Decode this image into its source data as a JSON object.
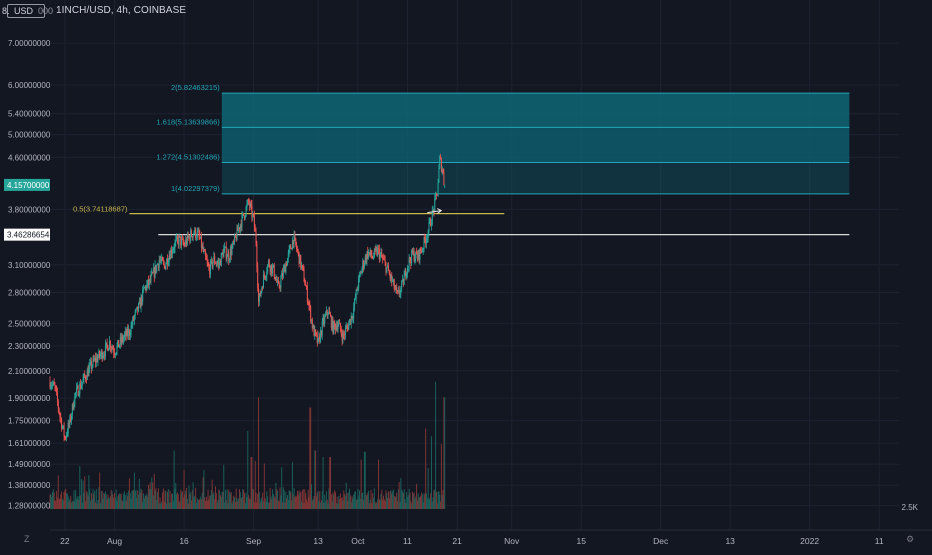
{
  "header": {
    "symbol_line": "1INCH/USD, 4h, COINBASE",
    "currency_left": "8.",
    "currency_mid": "USD",
    "currency_right": "000"
  },
  "colors": {
    "background": "#131722",
    "grid": "#1e2230",
    "up": "#26a69a",
    "down": "#ef5350",
    "volume_up": "#1a5e59",
    "volume_down": "#7e3434",
    "fib_zone": "#0e6675",
    "fib_line": "#22a6b8",
    "yellow_line": "#c9b64a",
    "white_line": "#d9d9d9",
    "axis_text": "#b2b5be",
    "price_badge": "#26a69a"
  },
  "chart_data": {
    "type": "candlestick",
    "symbol": "1INCH/USD",
    "interval": "4h",
    "exchange": "COINBASE",
    "y_scale": "log",
    "ylim": [
      1.25,
      8.2
    ],
    "y_ticks": [
      "7.00000000",
      "6.00000000",
      "5.40000000",
      "5.00000000",
      "4.60000000",
      "3.80000000",
      "3.10000000",
      "2.80000000",
      "2.50000000",
      "2.30000000",
      "2.10000000",
      "1.90000000",
      "1.75000000",
      "1.61000000",
      "1.49000000",
      "1.38000000",
      "1.28000000"
    ],
    "y_tick_values": [
      7.0,
      6.0,
      5.4,
      5.0,
      4.6,
      3.8,
      3.1,
      2.8,
      2.5,
      2.3,
      2.1,
      1.9,
      1.75,
      1.61,
      1.49,
      1.38,
      1.28
    ],
    "x_ticks": [
      "22",
      "Aug",
      "16",
      "Sep",
      "13",
      "Oct",
      "11",
      "21",
      "Nov",
      "15",
      "Dec",
      "13",
      "2022",
      "11"
    ],
    "x_tick_values": [
      -7,
      3,
      17,
      31,
      44,
      52,
      62,
      72,
      83,
      97,
      113,
      127,
      143,
      157
    ],
    "x_unit": "days from 2021-08-01",
    "xlim": [
      -10,
      161
    ],
    "price_axis_labels": [
      {
        "value": 4.157,
        "text": "4.15700000",
        "style": "badge"
      },
      {
        "value": 3.46286654,
        "text": "3.46286654",
        "style": "white"
      }
    ],
    "fib_extension": {
      "levels": [
        {
          "ratio": "1",
          "price": 4.02297379,
          "label": "1(4.02297379)"
        },
        {
          "ratio": "1.272",
          "price": 4.51302486,
          "label": "1.272(4.51302486)"
        },
        {
          "ratio": "1.618",
          "price": 5.13639866,
          "label": "1.618(5.13639866)"
        },
        {
          "ratio": "2",
          "price": 5.82463215,
          "label": "2(5.82463215)"
        }
      ],
      "x_start": 24.6,
      "x_end": 151
    },
    "horizontal_lines": [
      {
        "price": 3.74118687,
        "label": "0.5(3.74118687)",
        "color": "yellow",
        "x_start": 6.0,
        "x_end": 81.5
      },
      {
        "price": 3.46286654,
        "label": "",
        "color": "white",
        "x_start": 11.8,
        "x_end": 151
      }
    ],
    "volume_axis_label": "2.5K",
    "close_path": [
      [
        -10,
        2.02
      ],
      [
        -9,
        1.97
      ],
      [
        -8,
        1.78
      ],
      [
        -7,
        1.64
      ],
      [
        -6,
        1.74
      ],
      [
        -5,
        1.92
      ],
      [
        -4,
        1.98
      ],
      [
        -3,
        2.05
      ],
      [
        -2,
        2.12
      ],
      [
        -1,
        2.18
      ],
      [
        0,
        2.22
      ],
      [
        1,
        2.26
      ],
      [
        2,
        2.33
      ],
      [
        3,
        2.26
      ],
      [
        4,
        2.32
      ],
      [
        5,
        2.38
      ],
      [
        6,
        2.42
      ],
      [
        7,
        2.56
      ],
      [
        8,
        2.66
      ],
      [
        9,
        2.84
      ],
      [
        10,
        2.9
      ],
      [
        11,
        3.02
      ],
      [
        12,
        3.16
      ],
      [
        13,
        3.08
      ],
      [
        14,
        3.22
      ],
      [
        15,
        3.33
      ],
      [
        16,
        3.4
      ],
      [
        17,
        3.33
      ],
      [
        18,
        3.43
      ],
      [
        19,
        3.5
      ],
      [
        20,
        3.44
      ],
      [
        21,
        3.22
      ],
      [
        22,
        3.04
      ],
      [
        23,
        3.16
      ],
      [
        24,
        3.1
      ],
      [
        25,
        3.27
      ],
      [
        26,
        3.2
      ],
      [
        27,
        3.34
      ],
      [
        28,
        3.55
      ],
      [
        29,
        3.72
      ],
      [
        30,
        3.9
      ],
      [
        31,
        3.66
      ],
      [
        31.5,
        3.38
      ],
      [
        32,
        2.7
      ],
      [
        33,
        2.95
      ],
      [
        34,
        3.12
      ],
      [
        35,
        3.04
      ],
      [
        36,
        2.84
      ],
      [
        37,
        3.02
      ],
      [
        38,
        3.2
      ],
      [
        39,
        3.42
      ],
      [
        40,
        3.22
      ],
      [
        41,
        3.0
      ],
      [
        42,
        2.72
      ],
      [
        43,
        2.44
      ],
      [
        44,
        2.32
      ],
      [
        45,
        2.5
      ],
      [
        46,
        2.62
      ],
      [
        47,
        2.46
      ],
      [
        48,
        2.5
      ],
      [
        49,
        2.38
      ],
      [
        50,
        2.48
      ],
      [
        51,
        2.6
      ],
      [
        52,
        2.88
      ],
      [
        53,
        3.1
      ],
      [
        54,
        3.24
      ],
      [
        55,
        3.19
      ],
      [
        56,
        3.26
      ],
      [
        57,
        3.16
      ],
      [
        58,
        3.04
      ],
      [
        59,
        2.9
      ],
      [
        60,
        2.76
      ],
      [
        61,
        2.88
      ],
      [
        62,
        3.1
      ],
      [
        63,
        3.22
      ],
      [
        64,
        3.19
      ],
      [
        65,
        3.3
      ],
      [
        66,
        3.48
      ],
      [
        67,
        3.72
      ],
      [
        68,
        4.05
      ],
      [
        68.5,
        4.56
      ],
      [
        69,
        4.42
      ],
      [
        69.5,
        4.157
      ]
    ],
    "volume_spikes": [
      {
        "x": 29.8,
        "v": 0.6
      },
      {
        "x": 30.6,
        "v": 0.4
      },
      {
        "x": 31.4,
        "v": 0.37
      },
      {
        "x": 32.0,
        "v": 0.86
      },
      {
        "x": 33.2,
        "v": 0.35
      },
      {
        "x": 38.8,
        "v": 0.36
      },
      {
        "x": 42.4,
        "v": 0.78
      },
      {
        "x": 43.4,
        "v": 0.45
      },
      {
        "x": 45.0,
        "v": 0.4
      },
      {
        "x": 46.4,
        "v": 0.4
      },
      {
        "x": 52.6,
        "v": 0.38
      },
      {
        "x": 53.4,
        "v": 0.44
      },
      {
        "x": 56.2,
        "v": 0.38
      },
      {
        "x": 65.6,
        "v": 0.62
      },
      {
        "x": 66.8,
        "v": 0.56
      },
      {
        "x": 67.6,
        "v": 0.98
      },
      {
        "x": 68.8,
        "v": 0.5
      },
      {
        "x": 69.4,
        "v": 0.86
      },
      {
        "x": 70.0,
        "v": 0.32
      },
      {
        "x": -4.0,
        "v": 0.33
      },
      {
        "x": -3.0,
        "v": 0.25
      },
      {
        "x": 0.0,
        "v": 0.28
      },
      {
        "x": 7.0,
        "v": 0.28
      },
      {
        "x": 11.0,
        "v": 0.27
      },
      {
        "x": 15.0,
        "v": 0.45
      },
      {
        "x": 21.0,
        "v": 0.3
      },
      {
        "x": 25.0,
        "v": 0.34
      }
    ]
  }
}
